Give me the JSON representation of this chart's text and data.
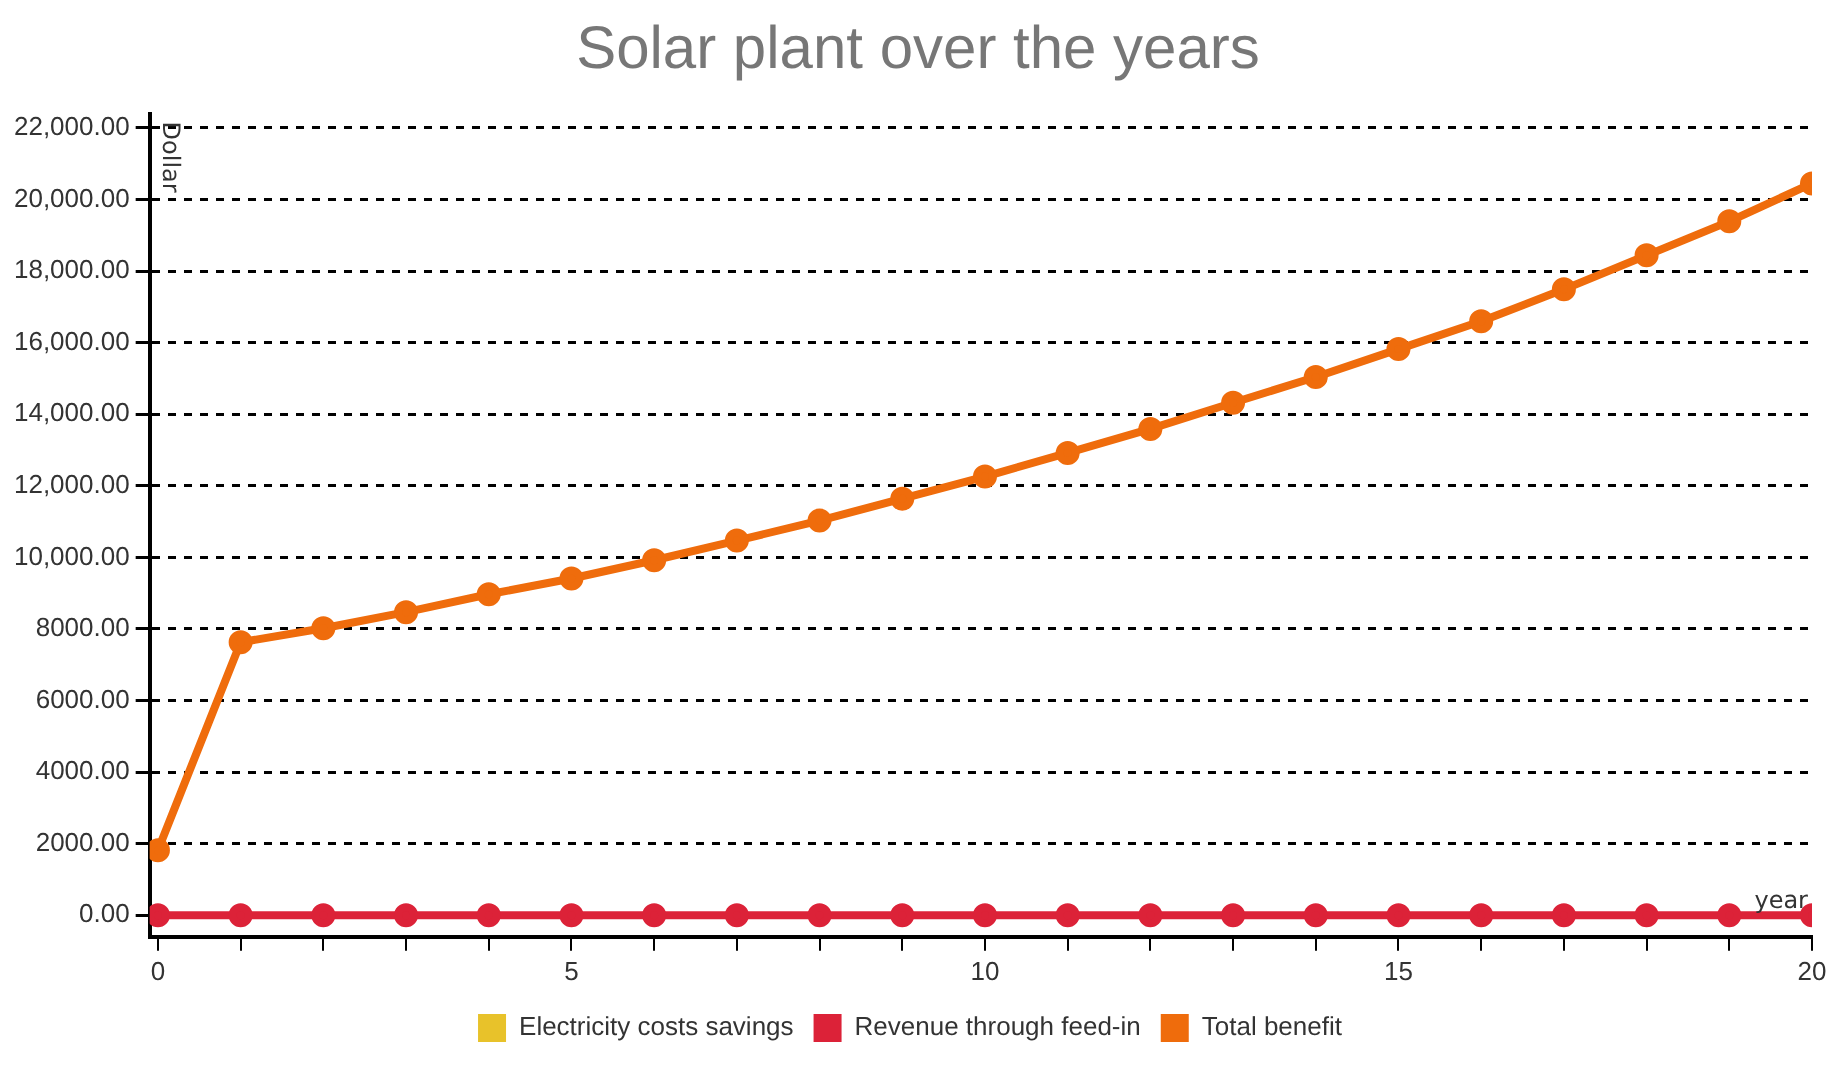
{
  "chart_data": {
    "type": "line",
    "title": "Solar plant over the years",
    "xlabel": "year",
    "ylabel": "Dollar",
    "x": [
      0,
      1,
      2,
      3,
      4,
      5,
      6,
      7,
      8,
      9,
      10,
      11,
      12,
      13,
      14,
      15,
      16,
      17,
      18,
      19,
      20
    ],
    "series": [
      {
        "name": "Electricity costs savings",
        "color": "#e8c22a",
        "values": [
          null,
          null,
          null,
          null,
          null,
          null,
          null,
          null,
          null,
          null,
          null,
          null,
          null,
          null,
          null,
          null,
          null,
          null,
          null,
          null,
          null
        ]
      },
      {
        "name": "Revenue through feed-in",
        "color": "#dc2238",
        "values": [
          0,
          0,
          0,
          0,
          0,
          0,
          0,
          0,
          0,
          0,
          0,
          0,
          0,
          0,
          0,
          0,
          0,
          0,
          0,
          0,
          0
        ]
      },
      {
        "name": "Total benefit",
        "color": "#ef6c0c",
        "values": [
          1820,
          7630,
          8020,
          8470,
          8970,
          9410,
          9920,
          10470,
          11030,
          11640,
          12260,
          12920,
          13590,
          14320,
          15040,
          15820,
          16600,
          17490,
          18440,
          19390,
          20450
        ]
      }
    ],
    "xlim": [
      -0.1,
      20
    ],
    "xticks": [
      0,
      {
        "value": 1,
        "label": null
      },
      {
        "value": 2,
        "label": null
      },
      {
        "value": 3,
        "label": null
      },
      {
        "value": 4,
        "label": null
      },
      5,
      {
        "value": 6,
        "label": null
      },
      {
        "value": 7,
        "label": null
      },
      {
        "value": 8,
        "label": null
      },
      {
        "value": 9,
        "label": null
      },
      10,
      {
        "value": 11,
        "label": null
      },
      {
        "value": 12,
        "label": null
      },
      {
        "value": 13,
        "label": null
      },
      {
        "value": 14,
        "label": null
      },
      15,
      {
        "value": 16,
        "label": null
      },
      {
        "value": 17,
        "label": null
      },
      {
        "value": 18,
        "label": null
      },
      {
        "value": 19,
        "label": null
      },
      20
    ],
    "ylim": [
      -600,
      22400
    ],
    "yticks": [
      {
        "value": 0,
        "label": "0.00"
      },
      {
        "value": 2000,
        "label": "2000.00"
      },
      {
        "value": 4000,
        "label": "4000.00"
      },
      {
        "value": 6000,
        "label": "6000.00"
      },
      {
        "value": 8000,
        "label": "8000.00"
      },
      {
        "value": 10000,
        "label": "10,000.00"
      },
      {
        "value": 12000,
        "label": "12,000.00"
      },
      {
        "value": 14000,
        "label": "14,000.00"
      },
      {
        "value": 16000,
        "label": "16,000.00"
      },
      {
        "value": 18000,
        "label": "18,000.00"
      },
      {
        "value": 20000,
        "label": "20,000.00"
      },
      {
        "value": 22000,
        "label": "22,000.00"
      }
    ],
    "grid": "y",
    "legend": "bottom",
    "marker": "circle",
    "line_style": "solid"
  }
}
